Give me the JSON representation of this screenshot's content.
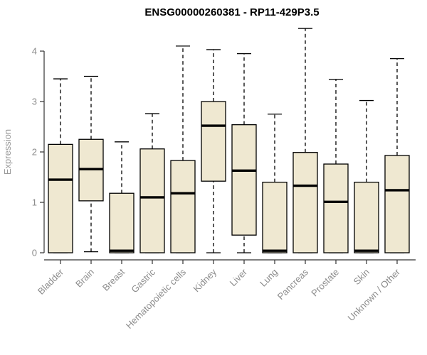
{
  "chart_data": {
    "type": "boxplot",
    "title": "ENSG00000260381 - RP11-429P3.5",
    "xlabel": "",
    "ylabel": "Expression",
    "ylim": [
      0,
      4.5
    ],
    "yticks": [
      0,
      1,
      2,
      3,
      4
    ],
    "grid": false,
    "legend": "none",
    "categories": [
      "Bladder",
      "Brain",
      "Breast",
      "Gastric",
      "Hematopoietic cells",
      "Kidney",
      "Liver",
      "Lung",
      "Pancreas",
      "Prostate",
      "Skin",
      "Unknown / Other"
    ],
    "series": [
      {
        "name": "Bladder",
        "whisker_low": 0,
        "q1": 0,
        "median": 1.45,
        "q3": 2.15,
        "whisker_high": 3.45
      },
      {
        "name": "Brain",
        "whisker_low": 0.02,
        "q1": 1.03,
        "median": 1.66,
        "q3": 2.25,
        "whisker_high": 3.5
      },
      {
        "name": "Breast",
        "whisker_low": 0,
        "q1": 0,
        "median": 0.04,
        "q3": 1.18,
        "whisker_high": 2.2
      },
      {
        "name": "Gastric",
        "whisker_low": 0,
        "q1": 0,
        "median": 1.1,
        "q3": 2.06,
        "whisker_high": 2.76
      },
      {
        "name": "Hematopoietic cells",
        "whisker_low": 0,
        "q1": 0,
        "median": 1.18,
        "q3": 1.83,
        "whisker_high": 4.1
      },
      {
        "name": "Kidney",
        "whisker_low": 0,
        "q1": 1.42,
        "median": 2.52,
        "q3": 3.0,
        "whisker_high": 4.03
      },
      {
        "name": "Liver",
        "whisker_low": 0,
        "q1": 0.35,
        "median": 1.63,
        "q3": 2.54,
        "whisker_high": 3.95
      },
      {
        "name": "Lung",
        "whisker_low": 0,
        "q1": 0,
        "median": 0.04,
        "q3": 1.4,
        "whisker_high": 2.75
      },
      {
        "name": "Pancreas",
        "whisker_low": 0,
        "q1": 0,
        "median": 1.33,
        "q3": 1.99,
        "whisker_high": 4.45
      },
      {
        "name": "Prostate",
        "whisker_low": 0,
        "q1": 0,
        "median": 1.01,
        "q3": 1.76,
        "whisker_high": 3.44
      },
      {
        "name": "Skin",
        "whisker_low": 0,
        "q1": 0,
        "median": 0.04,
        "q3": 1.4,
        "whisker_high": 3.02
      },
      {
        "name": "Unknown / Other",
        "whisker_low": 0,
        "q1": 0,
        "median": 1.24,
        "q3": 1.93,
        "whisker_high": 3.85
      }
    ]
  },
  "colors": {
    "background": "#ffffff",
    "box_fill": "#EFE8D1",
    "box_stroke": "#000000",
    "median": "#000000",
    "whisker": "#000000",
    "axis": "#333333",
    "tick_label": "#8c8c8c",
    "axis_label": "#999999",
    "title": "#000000"
  }
}
